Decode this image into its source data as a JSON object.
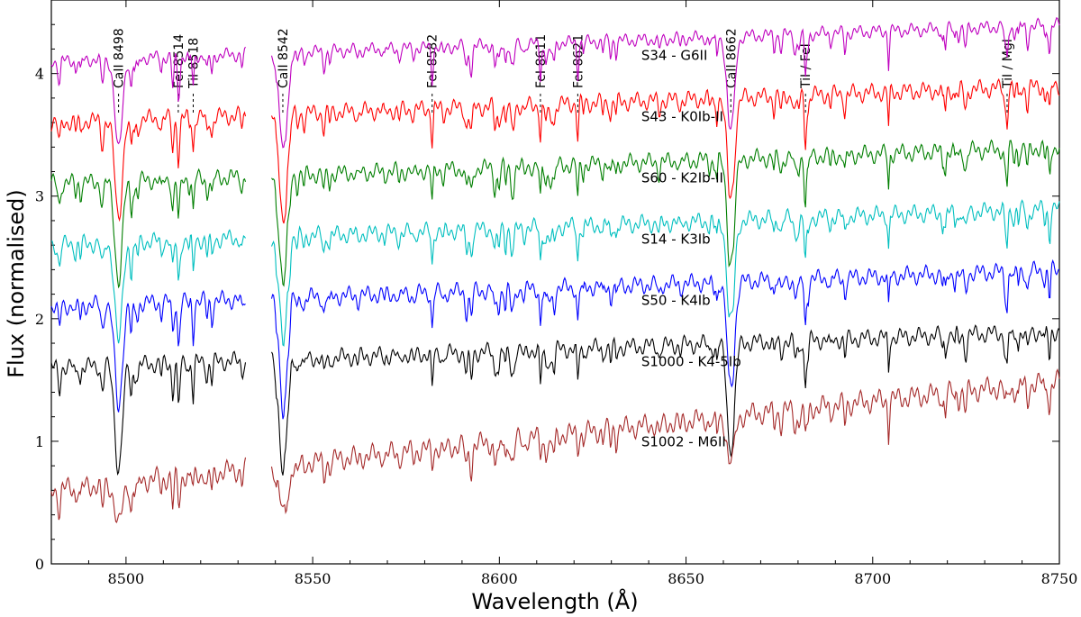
{
  "chart_data": {
    "type": "line",
    "title": "",
    "xlabel": "Wavelength (Å)",
    "ylabel": "Flux (normalised)",
    "xlim": [
      8480,
      8750
    ],
    "ylim": [
      0,
      4.6
    ],
    "xticks": [
      8500,
      8550,
      8600,
      8650,
      8700,
      8750
    ],
    "yticks": [
      0,
      1,
      2,
      3,
      4
    ],
    "gap": [
      8532,
      8539
    ],
    "line_markers": [
      {
        "label": "CaII 8498",
        "x": 8498.0
      },
      {
        "label": "FeI 8514",
        "x": 8514.0
      },
      {
        "label": "TiI 8518",
        "x": 8518.0
      },
      {
        "label": "CaII 8542",
        "x": 8542.0
      },
      {
        "label": "FeI 8582",
        "x": 8582.0
      },
      {
        "label": "FeI 8611",
        "x": 8611.0
      },
      {
        "label": "FeI 8621",
        "x": 8621.0
      },
      {
        "label": "CaII 8662",
        "x": 8662.0
      },
      {
        "label": "TiI / FeI",
        "x": 8682.0
      },
      {
        "label": "TiI / MgI",
        "x": 8736.0
      }
    ],
    "series": [
      {
        "name": "S34 - G6II",
        "color": "#bf00bf",
        "offset": 4.1,
        "slope": 0.0011,
        "depth": 0.75,
        "noise": 0.03,
        "label_at": 8638
      },
      {
        "name": "S43 - K0Ib-II",
        "color": "#ff0000",
        "offset": 3.6,
        "slope": 0.0011,
        "depth": 0.8,
        "noise": 0.04,
        "label_at": 8638
      },
      {
        "name": "S60 - K2Ib-II",
        "color": "#007f00",
        "offset": 3.1,
        "slope": 0.0011,
        "depth": 0.82,
        "noise": 0.04,
        "label_at": 8638
      },
      {
        "name": "S14 - K3Ib",
        "color": "#00bfbf",
        "offset": 2.6,
        "slope": 0.0011,
        "depth": 0.82,
        "noise": 0.04,
        "label_at": 8638
      },
      {
        "name": "S50 - K4Ib",
        "color": "#0000ff",
        "offset": 2.1,
        "slope": 0.0011,
        "depth": 0.85,
        "noise": 0.04,
        "label_at": 8638
      },
      {
        "name": "S1000 - K4-5Ib",
        "color": "#000000",
        "offset": 1.6,
        "slope": 0.0011,
        "depth": 0.85,
        "noise": 0.04,
        "label_at": 8638
      },
      {
        "name": "S1002 - M6II",
        "color": "#a52a2a",
        "offset": 0.6,
        "slope": 0.0033,
        "depth": 0.35,
        "noise": 0.05,
        "label_at": 8638
      }
    ]
  }
}
